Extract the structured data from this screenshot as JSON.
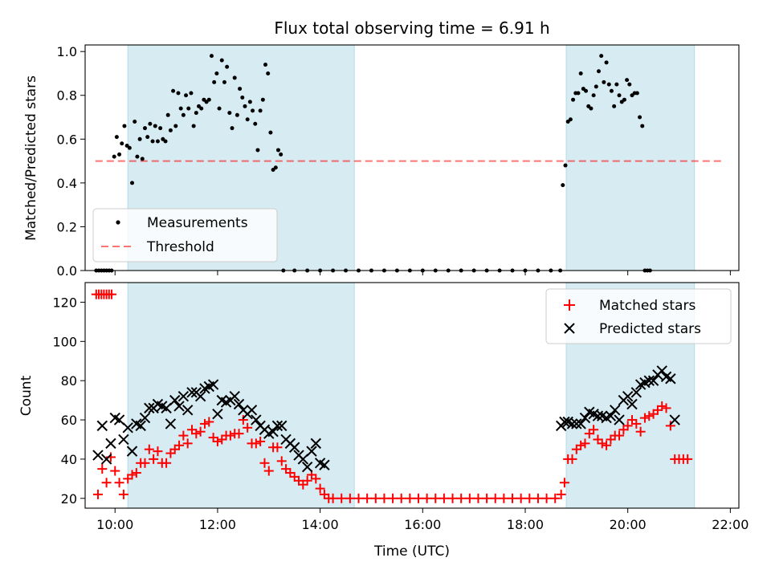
{
  "title": "Flux total observing time = 6.91 h",
  "colors": {
    "shade": "#add8e6",
    "measurements": "#000000",
    "threshold": "#ff0000",
    "matched": "#ff0000",
    "predicted": "#000000"
  },
  "chart_data": [
    {
      "type": "scatter",
      "ylabel": "Matched/Predicted stars",
      "ylim": [
        0,
        1.03
      ],
      "xlim": [
        "09:25",
        "22:10"
      ],
      "yticks": [
        "0.0",
        "0.2",
        "0.4",
        "0.6",
        "0.8",
        "1.0"
      ],
      "legend": {
        "placement": "lower-left",
        "measurements_label": "Measurements",
        "threshold_label": "Threshold"
      },
      "threshold": {
        "y": 0.5,
        "x_range": [
          "09:37",
          "21:50"
        ]
      },
      "shaded_ranges": [
        [
          "10:15",
          "14:40"
        ],
        [
          "18:48",
          "21:18"
        ]
      ],
      "points": [
        [
          "09:38",
          0
        ],
        [
          "09:41",
          0
        ],
        [
          "09:44",
          0
        ],
        [
          "09:47",
          0
        ],
        [
          "09:50",
          0
        ],
        [
          "09:53",
          0
        ],
        [
          "09:56",
          0
        ],
        [
          "09:59",
          0.52
        ],
        [
          "10:02",
          0.61
        ],
        [
          "10:05",
          0.53
        ],
        [
          "10:08",
          0.58
        ],
        [
          "10:11",
          0.66
        ],
        [
          "10:14",
          0.57
        ],
        [
          "10:17",
          0.56
        ],
        [
          "10:20",
          0.4
        ],
        [
          "10:23",
          0.68
        ],
        [
          "10:26",
          0.52
        ],
        [
          "10:29",
          0.6
        ],
        [
          "10:32",
          0.51
        ],
        [
          "10:35",
          0.65
        ],
        [
          "10:38",
          0.61
        ],
        [
          "10:41",
          0.67
        ],
        [
          "10:44",
          0.59
        ],
        [
          "10:47",
          0.66
        ],
        [
          "10:50",
          0.59
        ],
        [
          "10:53",
          0.65
        ],
        [
          "10:56",
          0.6
        ],
        [
          "10:59",
          0.59
        ],
        [
          "11:02",
          0.71
        ],
        [
          "11:05",
          0.64
        ],
        [
          "11:08",
          0.82
        ],
        [
          "11:11",
          0.66
        ],
        [
          "11:14",
          0.81
        ],
        [
          "11:17",
          0.74
        ],
        [
          "11:20",
          0.71
        ],
        [
          "11:23",
          0.8
        ],
        [
          "11:26",
          0.74
        ],
        [
          "11:29",
          0.81
        ],
        [
          "11:32",
          0.66
        ],
        [
          "11:35",
          0.72
        ],
        [
          "11:38",
          0.75
        ],
        [
          "11:41",
          0.74
        ],
        [
          "11:44",
          0.78
        ],
        [
          "11:47",
          0.77
        ],
        [
          "11:50",
          0.78
        ],
        [
          "11:53",
          0.98
        ],
        [
          "11:56",
          0.86
        ],
        [
          "11:59",
          0.9
        ],
        [
          "12:02",
          0.74
        ],
        [
          "12:05",
          0.96
        ],
        [
          "12:08",
          0.86
        ],
        [
          "12:11",
          0.93
        ],
        [
          "12:14",
          0.72
        ],
        [
          "12:17",
          0.65
        ],
        [
          "12:20",
          0.88
        ],
        [
          "12:23",
          0.71
        ],
        [
          "12:26",
          0.83
        ],
        [
          "12:29",
          0.79
        ],
        [
          "12:32",
          0.75
        ],
        [
          "12:35",
          0.69
        ],
        [
          "12:38",
          0.77
        ],
        [
          "12:41",
          0.73
        ],
        [
          "12:44",
          0.67
        ],
        [
          "12:47",
          0.55
        ],
        [
          "12:50",
          0.73
        ],
        [
          "12:53",
          0.78
        ],
        [
          "12:56",
          0.94
        ],
        [
          "12:59",
          0.9
        ],
        [
          "13:02",
          0.63
        ],
        [
          "13:05",
          0.46
        ],
        [
          "13:08",
          0.47
        ],
        [
          "13:11",
          0.55
        ],
        [
          "13:14",
          0.53
        ],
        [
          "13:17",
          0
        ],
        [
          "13:30",
          0
        ],
        [
          "13:45",
          0
        ],
        [
          "14:00",
          0
        ],
        [
          "14:15",
          0
        ],
        [
          "14:30",
          0
        ],
        [
          "14:45",
          0
        ],
        [
          "15:00",
          0
        ],
        [
          "15:15",
          0
        ],
        [
          "15:30",
          0
        ],
        [
          "15:45",
          0
        ],
        [
          "16:00",
          0
        ],
        [
          "16:15",
          0
        ],
        [
          "16:30",
          0
        ],
        [
          "16:45",
          0
        ],
        [
          "17:00",
          0
        ],
        [
          "17:15",
          0
        ],
        [
          "17:30",
          0
        ],
        [
          "17:45",
          0
        ],
        [
          "18:00",
          0
        ],
        [
          "18:15",
          0
        ],
        [
          "18:30",
          0
        ],
        [
          "18:41",
          0
        ],
        [
          "18:44",
          0.39
        ],
        [
          "18:47",
          0.48
        ],
        [
          "18:50",
          0.68
        ],
        [
          "18:53",
          0.69
        ],
        [
          "18:56",
          0.78
        ],
        [
          "18:59",
          0.81
        ],
        [
          "19:02",
          0.81
        ],
        [
          "19:05",
          0.9
        ],
        [
          "19:08",
          0.83
        ],
        [
          "19:11",
          0.82
        ],
        [
          "19:14",
          0.75
        ],
        [
          "19:17",
          0.74
        ],
        [
          "19:20",
          0.8
        ],
        [
          "19:23",
          0.84
        ],
        [
          "19:26",
          0.91
        ],
        [
          "19:29",
          0.98
        ],
        [
          "19:32",
          0.86
        ],
        [
          "19:35",
          0.95
        ],
        [
          "19:38",
          0.85
        ],
        [
          "19:41",
          0.82
        ],
        [
          "19:44",
          0.75
        ],
        [
          "19:47",
          0.85
        ],
        [
          "19:50",
          0.8
        ],
        [
          "19:53",
          0.77
        ],
        [
          "19:56",
          0.78
        ],
        [
          "19:59",
          0.87
        ],
        [
          "20:02",
          0.85
        ],
        [
          "20:05",
          0.8
        ],
        [
          "20:08",
          0.81
        ],
        [
          "20:11",
          0.81
        ],
        [
          "20:14",
          0.7
        ],
        [
          "20:17",
          0.66
        ],
        [
          "20:20",
          0
        ],
        [
          "20:23",
          0
        ],
        [
          "20:26",
          0
        ]
      ]
    },
    {
      "type": "scatter",
      "xlabel": "Time (UTC)",
      "ylabel": "Count",
      "xlim": [
        "09:25",
        "22:10"
      ],
      "ylim": [
        15,
        130
      ],
      "xticks": [
        "10:00",
        "12:00",
        "14:00",
        "16:00",
        "18:00",
        "20:00",
        "22:00"
      ],
      "yticks": [
        "20",
        "40",
        "60",
        "80",
        "100",
        "120"
      ],
      "legend": {
        "placement": "upper-right",
        "matched_label": "Matched stars",
        "predicted_label": "Predicted stars"
      },
      "shaded_ranges": [
        [
          "10:15",
          "14:40"
        ],
        [
          "18:48",
          "21:18"
        ]
      ],
      "matched": [
        [
          "09:38",
          124
        ],
        [
          "09:41",
          124
        ],
        [
          "09:44",
          124
        ],
        [
          "09:47",
          124
        ],
        [
          "09:50",
          124
        ],
        [
          "09:53",
          124
        ],
        [
          "09:56",
          124
        ],
        [
          "09:40",
          22
        ],
        [
          "09:45",
          35
        ],
        [
          "09:50",
          28
        ],
        [
          "09:55",
          41
        ],
        [
          "10:00",
          34
        ],
        [
          "10:05",
          28
        ],
        [
          "10:10",
          22
        ],
        [
          "10:15",
          30
        ],
        [
          "10:20",
          32
        ],
        [
          "10:25",
          33
        ],
        [
          "10:30",
          38
        ],
        [
          "10:35",
          38
        ],
        [
          "10:40",
          45
        ],
        [
          "10:45",
          40
        ],
        [
          "10:50",
          44
        ],
        [
          "10:55",
          38
        ],
        [
          "11:00",
          38
        ],
        [
          "11:05",
          43
        ],
        [
          "11:10",
          45
        ],
        [
          "11:15",
          47
        ],
        [
          "11:20",
          52
        ],
        [
          "11:25",
          48
        ],
        [
          "11:30",
          55
        ],
        [
          "11:35",
          53
        ],
        [
          "11:40",
          54
        ],
        [
          "11:45",
          58
        ],
        [
          "11:50",
          59
        ],
        [
          "11:55",
          51
        ],
        [
          "12:00",
          49
        ],
        [
          "12:05",
          50
        ],
        [
          "12:10",
          52
        ],
        [
          "12:15",
          52
        ],
        [
          "12:20",
          53
        ],
        [
          "12:25",
          53
        ],
        [
          "12:30",
          60
        ],
        [
          "12:35",
          56
        ],
        [
          "12:40",
          48
        ],
        [
          "12:45",
          48
        ],
        [
          "12:50",
          49
        ],
        [
          "12:55",
          38
        ],
        [
          "13:00",
          34
        ],
        [
          "13:05",
          46
        ],
        [
          "13:10",
          46
        ],
        [
          "13:15",
          39
        ],
        [
          "13:20",
          35
        ],
        [
          "13:25",
          33
        ],
        [
          "13:30",
          31
        ],
        [
          "13:35",
          29
        ],
        [
          "13:40",
          27
        ],
        [
          "13:45",
          29
        ],
        [
          "13:50",
          32
        ],
        [
          "13:55",
          30
        ],
        [
          "14:00",
          25
        ],
        [
          "14:05",
          22
        ],
        [
          "14:10",
          20
        ],
        [
          "14:15",
          20
        ],
        [
          "14:25",
          20
        ],
        [
          "14:35",
          20
        ],
        [
          "14:45",
          20
        ],
        [
          "14:55",
          20
        ],
        [
          "15:05",
          20
        ],
        [
          "15:15",
          20
        ],
        [
          "15:25",
          20
        ],
        [
          "15:35",
          20
        ],
        [
          "15:45",
          20
        ],
        [
          "15:55",
          20
        ],
        [
          "16:05",
          20
        ],
        [
          "16:15",
          20
        ],
        [
          "16:25",
          20
        ],
        [
          "16:35",
          20
        ],
        [
          "16:45",
          20
        ],
        [
          "16:55",
          20
        ],
        [
          "17:05",
          20
        ],
        [
          "17:15",
          20
        ],
        [
          "17:25",
          20
        ],
        [
          "17:35",
          20
        ],
        [
          "17:45",
          20
        ],
        [
          "17:55",
          20
        ],
        [
          "18:05",
          20
        ],
        [
          "18:15",
          20
        ],
        [
          "18:25",
          20
        ],
        [
          "18:35",
          20
        ],
        [
          "18:42",
          22
        ],
        [
          "18:46",
          28
        ],
        [
          "18:50",
          40
        ],
        [
          "18:55",
          40
        ],
        [
          "19:00",
          45
        ],
        [
          "19:05",
          47
        ],
        [
          "19:10",
          48
        ],
        [
          "19:15",
          53
        ],
        [
          "19:20",
          55
        ],
        [
          "19:25",
          50
        ],
        [
          "19:30",
          48
        ],
        [
          "19:35",
          47
        ],
        [
          "19:40",
          50
        ],
        [
          "19:45",
          52
        ],
        [
          "19:50",
          52
        ],
        [
          "19:55",
          55
        ],
        [
          "20:00",
          57
        ],
        [
          "20:05",
          60
        ],
        [
          "20:10",
          58
        ],
        [
          "20:15",
          54
        ],
        [
          "20:20",
          61
        ],
        [
          "20:25",
          62
        ],
        [
          "20:30",
          63
        ],
        [
          "20:35",
          65
        ],
        [
          "20:40",
          67
        ],
        [
          "20:45",
          66
        ],
        [
          "20:50",
          57
        ],
        [
          "20:55",
          40
        ],
        [
          "21:00",
          40
        ],
        [
          "21:05",
          40
        ],
        [
          "21:10",
          40
        ]
      ],
      "predicted": [
        [
          "09:40",
          42
        ],
        [
          "09:45",
          57
        ],
        [
          "09:50",
          40
        ],
        [
          "09:55",
          48
        ],
        [
          "10:00",
          61
        ],
        [
          "10:05",
          60
        ],
        [
          "10:10",
          50
        ],
        [
          "10:15",
          56
        ],
        [
          "10:20",
          44
        ],
        [
          "10:25",
          58
        ],
        [
          "10:30",
          57
        ],
        [
          "10:35",
          61
        ],
        [
          "10:40",
          66
        ],
        [
          "10:45",
          66
        ],
        [
          "10:50",
          68
        ],
        [
          "10:55",
          67
        ],
        [
          "11:00",
          66
        ],
        [
          "11:05",
          58
        ],
        [
          "11:10",
          70
        ],
        [
          "11:15",
          67
        ],
        [
          "11:20",
          72
        ],
        [
          "11:25",
          65
        ],
        [
          "11:30",
          74
        ],
        [
          "11:35",
          74
        ],
        [
          "11:40",
          72
        ],
        [
          "11:45",
          76
        ],
        [
          "11:50",
          77
        ],
        [
          "11:55",
          78
        ],
        [
          "12:00",
          63
        ],
        [
          "12:05",
          70
        ],
        [
          "12:10",
          69
        ],
        [
          "12:15",
          70
        ],
        [
          "12:20",
          72
        ],
        [
          "12:25",
          68
        ],
        [
          "12:30",
          65
        ],
        [
          "12:35",
          63
        ],
        [
          "12:40",
          65
        ],
        [
          "12:45",
          60
        ],
        [
          "12:50",
          57
        ],
        [
          "12:55",
          55
        ],
        [
          "13:00",
          53
        ],
        [
          "13:05",
          54
        ],
        [
          "13:10",
          57
        ],
        [
          "13:15",
          57
        ],
        [
          "13:20",
          50
        ],
        [
          "13:25",
          48
        ],
        [
          "13:30",
          46
        ],
        [
          "13:35",
          42
        ],
        [
          "13:40",
          40
        ],
        [
          "13:45",
          36
        ],
        [
          "13:50",
          44
        ],
        [
          "13:55",
          48
        ],
        [
          "14:00",
          38
        ],
        [
          "14:05",
          37
        ],
        [
          "18:42",
          57
        ],
        [
          "18:46",
          59
        ],
        [
          "18:50",
          59
        ],
        [
          "18:55",
          58
        ],
        [
          "19:00",
          58
        ],
        [
          "19:05",
          58
        ],
        [
          "19:10",
          61
        ],
        [
          "19:15",
          64
        ],
        [
          "19:20",
          63
        ],
        [
          "19:25",
          62
        ],
        [
          "19:30",
          62
        ],
        [
          "19:35",
          61
        ],
        [
          "19:40",
          62
        ],
        [
          "19:45",
          65
        ],
        [
          "19:50",
          60
        ],
        [
          "19:55",
          70
        ],
        [
          "20:00",
          72
        ],
        [
          "20:05",
          68
        ],
        [
          "20:10",
          74
        ],
        [
          "20:15",
          78
        ],
        [
          "20:20",
          79
        ],
        [
          "20:25",
          80
        ],
        [
          "20:30",
          80
        ],
        [
          "20:35",
          83
        ],
        [
          "20:40",
          85
        ],
        [
          "20:45",
          82
        ],
        [
          "20:50",
          81
        ],
        [
          "20:55",
          60
        ]
      ]
    }
  ]
}
